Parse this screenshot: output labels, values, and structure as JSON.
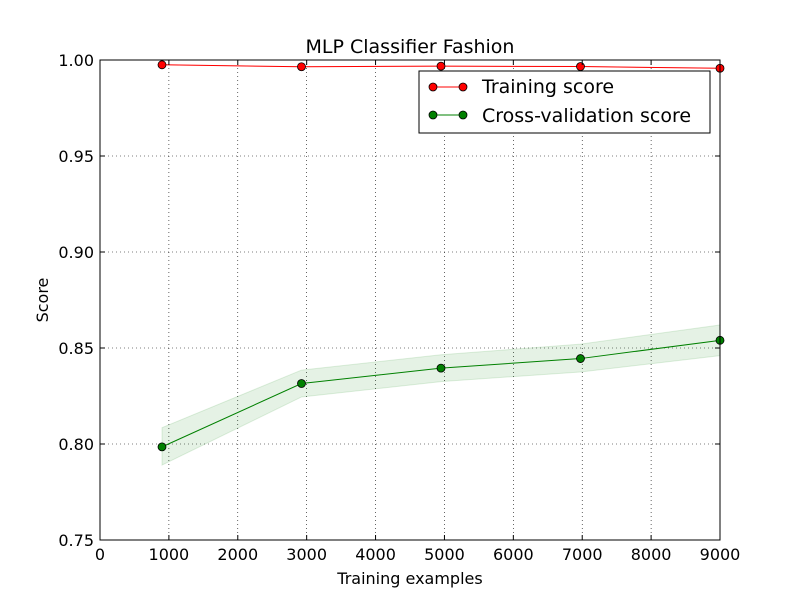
{
  "chart_data": {
    "type": "line",
    "title": "MLP Classifier Fashion",
    "xlabel": "Training examples",
    "ylabel": "Score",
    "xlim": [
      0,
      9000
    ],
    "ylim": [
      0.75,
      1.0
    ],
    "xticks": [
      0,
      1000,
      2000,
      3000,
      4000,
      5000,
      6000,
      7000,
      8000,
      9000
    ],
    "yticks": [
      0.75,
      0.8,
      0.85,
      0.9,
      0.95,
      1.0
    ],
    "ytick_labels": [
      "0.75",
      "0.80",
      "0.85",
      "0.90",
      "0.95",
      "1.00"
    ],
    "grid": true,
    "legend_position": "top-right",
    "x": [
      900,
      2925,
      4950,
      6975,
      9000
    ],
    "series": [
      {
        "name": "Training score",
        "color": "#ff0000",
        "marker": "circle",
        "values": [
          0.9975,
          0.9965,
          0.9968,
          0.9966,
          0.9957
        ],
        "band_lower": [
          0.9975,
          0.9965,
          0.9968,
          0.9966,
          0.9957
        ],
        "band_upper": [
          0.9975,
          0.9965,
          0.9968,
          0.9966,
          0.9957
        ]
      },
      {
        "name": "Cross-validation score",
        "color": "#008000",
        "marker": "circle",
        "values": [
          0.7985,
          0.8315,
          0.8395,
          0.8445,
          0.854
        ],
        "band_lower": [
          0.789,
          0.8245,
          0.8325,
          0.8375,
          0.846
        ],
        "band_upper": [
          0.8085,
          0.8385,
          0.8465,
          0.852,
          0.862
        ]
      }
    ]
  }
}
